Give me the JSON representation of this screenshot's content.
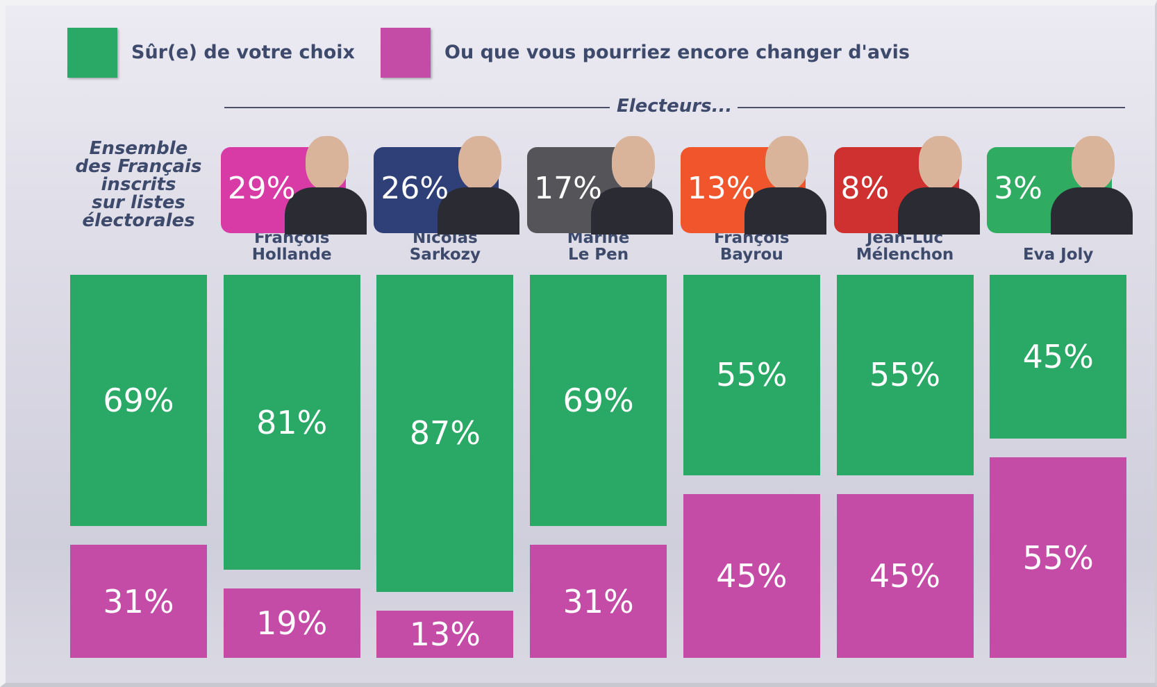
{
  "chart_data": {
    "type": "split_bar",
    "group_label": "Electeurs...",
    "categories": [
      "Ensemble\ndes Français\ninscrits\nsur listes\nélectorales",
      "François\nHollande",
      "Nicolas\nSarkozy",
      "Marine\nLe Pen",
      "François\nBayrou",
      "Jean-Luc\nMélenchon",
      "Eva Joly"
    ],
    "vote_shares": [
      null,
      29,
      26,
      17,
      13,
      8,
      3
    ],
    "vote_share_labels": [
      null,
      "29%",
      "26%",
      "17%",
      "13%",
      "8%",
      "3%"
    ],
    "candidate_colors": [
      null,
      "#d83aa6",
      "#2f3f78",
      "#555559",
      "#f0552b",
      "#cf3030",
      "#2fab62"
    ],
    "ylim": [
      0,
      100
    ],
    "series": [
      {
        "name": "Sûr(e) de votre choix",
        "color": "#2aa866",
        "values": [
          69,
          81,
          87,
          69,
          55,
          55,
          45
        ],
        "value_labels": [
          "69%",
          "81%",
          "87%",
          "69%",
          "55%",
          "55%",
          "45%"
        ]
      },
      {
        "name": "Ou que vous pourriez encore changer d'avis",
        "color": "#c44ca6",
        "values": [
          31,
          19,
          13,
          31,
          45,
          45,
          55
        ],
        "value_labels": [
          "31%",
          "19%",
          "13%",
          "31%",
          "45%",
          "45%",
          "55%"
        ]
      }
    ]
  }
}
